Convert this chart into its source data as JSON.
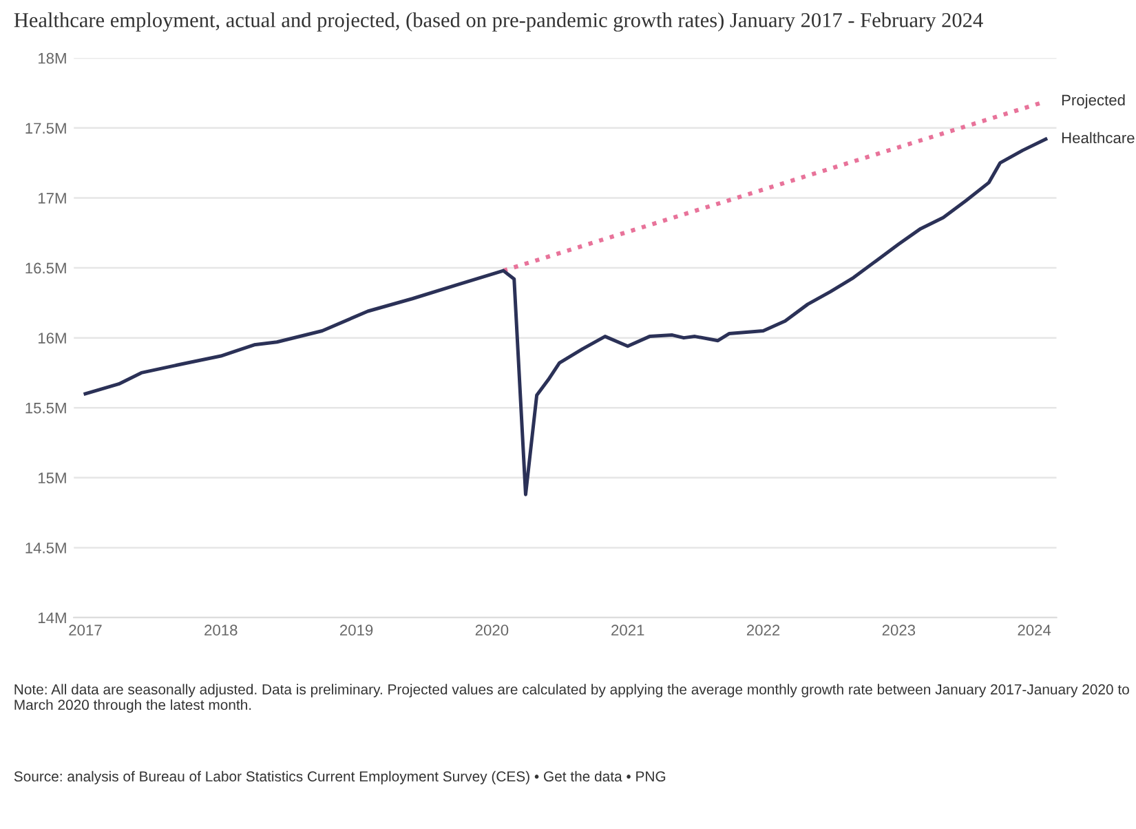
{
  "chart_data": {
    "type": "line",
    "title": "Healthcare employment, actual and projected, (based on pre-pandemic growth rates) January 2017 - February 2024",
    "series": [
      {
        "name": "Projected",
        "color": "#e8739a",
        "line_style": "dotted",
        "x": [
          "2020-02",
          "2024-02"
        ],
        "values": [
          16.48,
          17.69
        ]
      },
      {
        "name": "Healthcare",
        "color": "#2b3157",
        "line_style": "solid",
        "x": [
          "2017-01",
          "2017-04",
          "2017-06",
          "2017-10",
          "2018-01",
          "2018-04",
          "2018-06",
          "2018-10",
          "2019-02",
          "2019-06",
          "2019-10",
          "2020-02",
          "2020-03",
          "2020-04",
          "2020-05",
          "2020-06",
          "2020-07",
          "2020-09",
          "2020-11",
          "2021-01",
          "2021-03",
          "2021-05",
          "2021-06",
          "2021-07",
          "2021-09",
          "2021-10",
          "2022-01",
          "2022-03",
          "2022-05",
          "2022-07",
          "2022-09",
          "2022-11",
          "2023-01",
          "2023-03",
          "2023-05",
          "2023-07",
          "2023-09",
          "2023-10",
          "2023-12",
          "2024-02"
        ],
        "values": [
          15.6,
          15.67,
          15.75,
          15.82,
          15.87,
          15.95,
          15.97,
          16.05,
          16.19,
          16.28,
          16.38,
          16.48,
          16.42,
          14.88,
          15.59,
          15.7,
          15.82,
          15.92,
          16.01,
          15.94,
          16.01,
          16.02,
          16.0,
          16.01,
          15.98,
          16.03,
          16.05,
          16.12,
          16.24,
          16.33,
          16.43,
          16.55,
          16.67,
          16.78,
          16.86,
          16.98,
          17.11,
          17.25,
          17.34,
          17.42
        ]
      }
    ],
    "xlim": [
      "2016-12",
      "2024-03"
    ],
    "xticks": [
      "2017",
      "2018",
      "2019",
      "2020",
      "2021",
      "2022",
      "2023",
      "2024"
    ],
    "ylim": [
      14,
      18
    ],
    "yticks": [
      {
        "value": 14,
        "label": "14M"
      },
      {
        "value": 14.5,
        "label": "14.5M"
      },
      {
        "value": 15,
        "label": "15M"
      },
      {
        "value": 15.5,
        "label": "15.5M"
      },
      {
        "value": 16,
        "label": "16M"
      },
      {
        "value": 16.5,
        "label": "16.5M"
      },
      {
        "value": 17,
        "label": "17M"
      },
      {
        "value": 17.5,
        "label": "17.5M"
      },
      {
        "value": 18,
        "label": "18M"
      }
    ],
    "grid": "y",
    "legend": false,
    "annotations": [
      "Note: All data are seasonally adjusted. Data is preliminary. Projected values are calculated by applying the average monthly growth rate between January 2017-January 2020 to March 2020 through the latest month.",
      "Source: analysis of Bureau of Labor Statistics Current Employment Survey (CES) • Get the data • PNG"
    ]
  }
}
